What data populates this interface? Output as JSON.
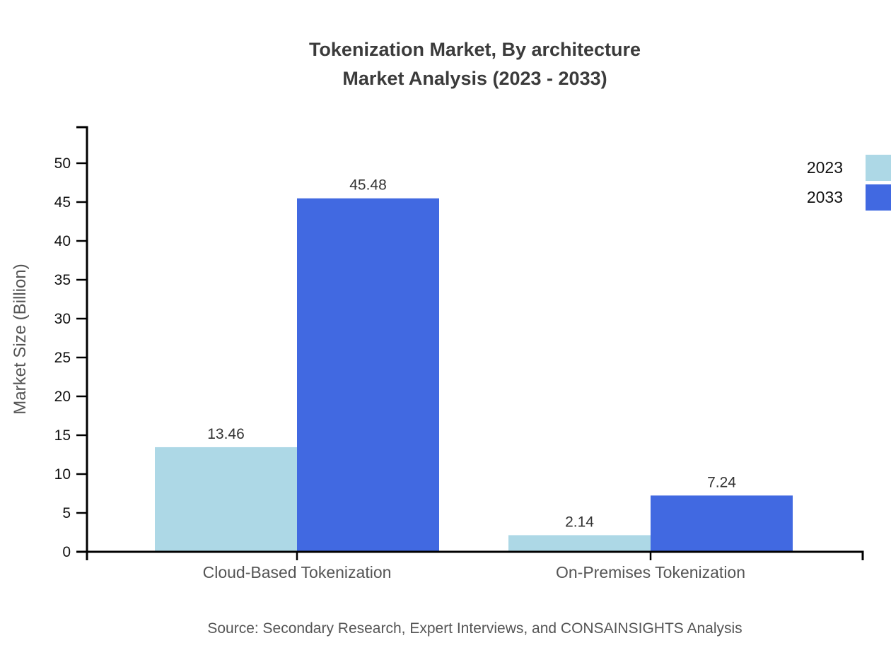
{
  "title": {
    "line1": "Tokenization Market, By architecture",
    "line2": "Market Analysis (2023 - 2033)"
  },
  "source": "Source: Secondary Research, Expert Interviews, and CONSAINSIGHTS Analysis",
  "legend": {
    "items": [
      {
        "label": "2023",
        "color": "#ADD8E6"
      },
      {
        "label": "2033",
        "color": "#4169E1"
      }
    ]
  },
  "colors": {
    "axis": "#000000",
    "tick_label": "#111111",
    "muted_text": "#555555",
    "title_text": "#3b3b3b",
    "value_label": "#333333"
  },
  "chart_data": {
    "type": "bar",
    "title": "Tokenization Market, By architecture Market Analysis (2023 - 2033)",
    "categories": [
      "Cloud-Based Tokenization",
      "On-Premises Tokenization"
    ],
    "series": [
      {
        "name": "2023",
        "color": "#ADD8E6",
        "values": [
          13.46,
          2.14
        ]
      },
      {
        "name": "2033",
        "color": "#4169E1",
        "values": [
          45.48,
          7.24
        ]
      }
    ],
    "xlabel": "",
    "ylabel": "Market Size (Billion)",
    "ylim": [
      0,
      50
    ],
    "ytick_step": 5,
    "grid": false,
    "legend_position": "top-right",
    "value_labels": true
  }
}
